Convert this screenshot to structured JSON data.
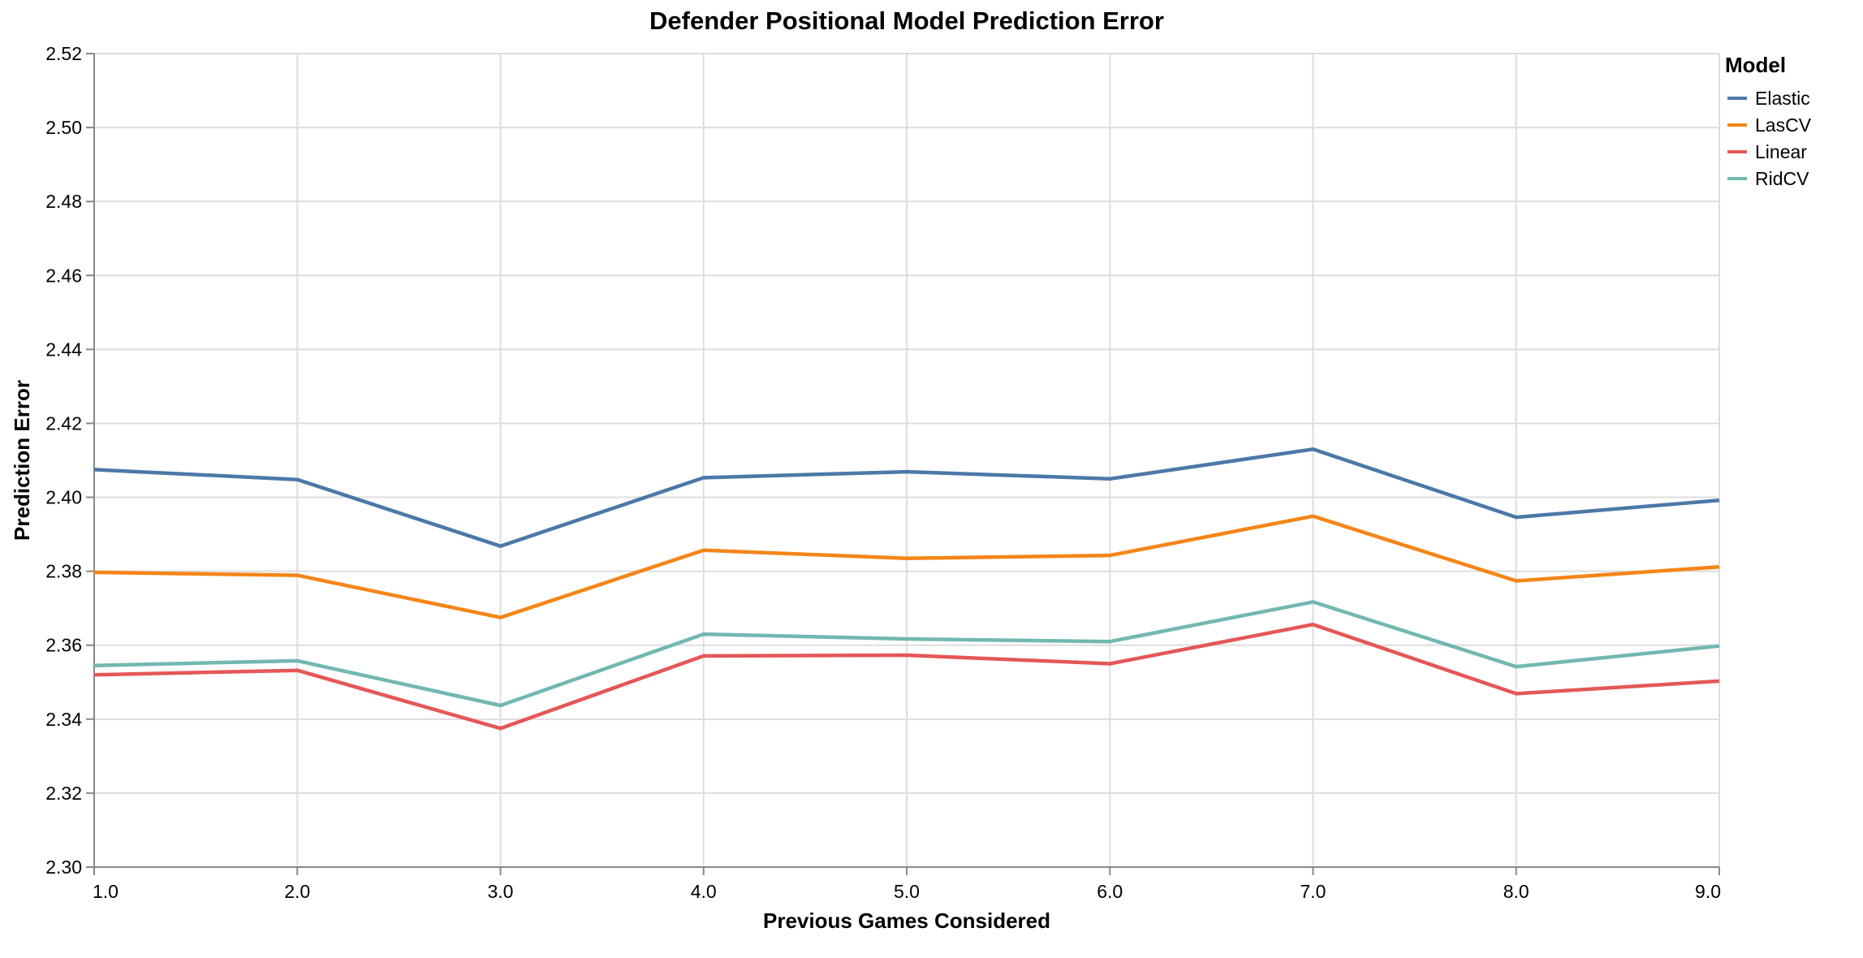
{
  "chart_data": {
    "type": "line",
    "title": "Defender Positional Model Prediction Error",
    "xlabel": "Previous Games Considered",
    "ylabel": "Prediction Error",
    "x": [
      1,
      2,
      3,
      4,
      5,
      6,
      7,
      8,
      9
    ],
    "x_tick_labels": [
      "1.0",
      "2.0",
      "3.0",
      "4.0",
      "5.0",
      "6.0",
      "7.0",
      "8.0",
      "9.0"
    ],
    "xlim": [
      1,
      9
    ],
    "ylim": [
      2.3,
      2.52
    ],
    "y_ticks": [
      2.3,
      2.32,
      2.34,
      2.36,
      2.38,
      2.4,
      2.42,
      2.44,
      2.46,
      2.48,
      2.5,
      2.52
    ],
    "y_tick_labels": [
      "2.30",
      "2.32",
      "2.34",
      "2.36",
      "2.38",
      "2.40",
      "2.42",
      "2.44",
      "2.46",
      "2.48",
      "2.50",
      "2.52"
    ],
    "grid": true,
    "legend": {
      "title": "Model",
      "position": "top-right"
    },
    "series": [
      {
        "name": "Elastic",
        "color": "#4c78a8",
        "values": [
          2.4075,
          2.4048,
          2.3868,
          2.4053,
          2.4069,
          2.405,
          2.413,
          2.3946,
          2.3992
        ]
      },
      {
        "name": "LasCV",
        "color": "#f58518",
        "values": [
          2.3797,
          2.3789,
          2.3675,
          2.3857,
          2.3835,
          2.3843,
          2.3949,
          2.3774,
          2.3812
        ]
      },
      {
        "name": "Linear",
        "color": "#e45756",
        "values": [
          2.352,
          2.3532,
          2.3375,
          2.3571,
          2.3573,
          2.355,
          2.3656,
          2.3469,
          2.3503
        ]
      },
      {
        "name": "RidCV",
        "color": "#72b7b2",
        "values": [
          2.3545,
          2.3558,
          2.3437,
          2.363,
          2.3617,
          2.361,
          2.3717,
          2.3542,
          2.3598
        ]
      }
    ]
  }
}
